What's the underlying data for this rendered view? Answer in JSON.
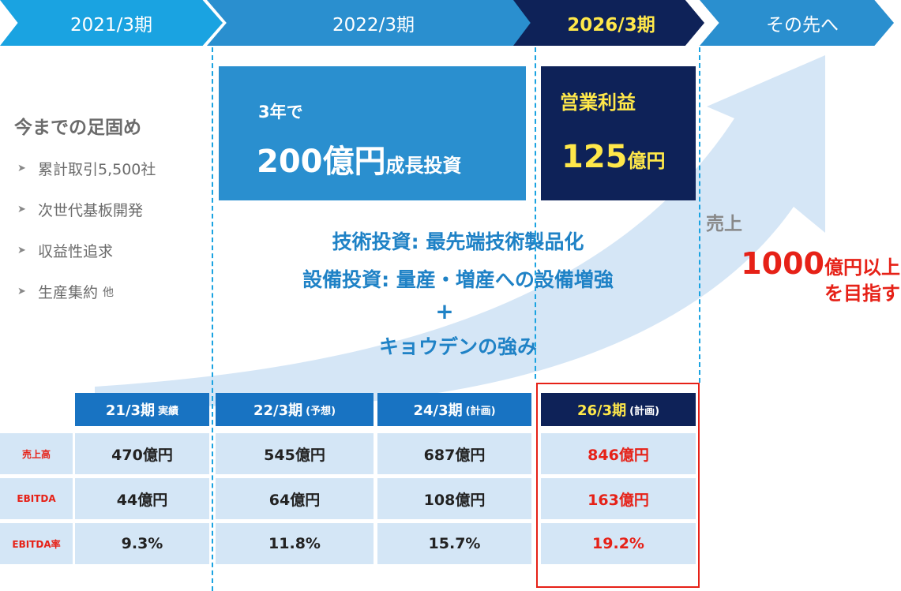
{
  "timeline": [
    {
      "label": "2021/3期"
    },
    {
      "label": "2022/3期"
    },
    {
      "label": "2026/3期"
    },
    {
      "label": "その先へ"
    }
  ],
  "foundation": {
    "title": "今までの足固め",
    "items": [
      "累計取引5,500社",
      "次世代基板開発",
      "収益性追求",
      "生産集約"
    ],
    "items_suffix": "他"
  },
  "investment": {
    "prefix": "3年で",
    "amount": "200億円",
    "suffix": "成長投資"
  },
  "operating_profit": {
    "label": "営業利益",
    "value": "125",
    "unit": "億円"
  },
  "strategy": {
    "line1": "技術投資: 最先端技術製品化",
    "line2": "設備投資: 量産・増産への設備増強",
    "plus": "+",
    "line3": "キョウデンの強み"
  },
  "sales_goal": {
    "label": "売上",
    "value": "1000",
    "unit": "億円以上",
    "line2": "を目指す"
  },
  "table": {
    "columns": [
      {
        "period": "21/3期",
        "note": "実績"
      },
      {
        "period": "22/3期",
        "note": "(予想)"
      },
      {
        "period": "24/3期",
        "note": "(計画)"
      },
      {
        "period": "26/3期",
        "note": "(計画)"
      }
    ],
    "rows": [
      {
        "label": "売上高",
        "values": [
          "470億円",
          "545億円",
          "687億円",
          "846億円"
        ]
      },
      {
        "label": "EBITDA",
        "values": [
          "44億円",
          "64億円",
          "108億円",
          "163億円"
        ]
      },
      {
        "label": "EBITDA率",
        "values": [
          "9.3%",
          "11.8%",
          "15.7%",
          "19.2%"
        ]
      }
    ]
  },
  "colors": {
    "accent": "#1aa3e1",
    "primary": "#2a8fcf",
    "navy": "#0e2258",
    "highlight": "#ffe84a",
    "red": "#e62117",
    "cell": "#d4e6f6"
  }
}
